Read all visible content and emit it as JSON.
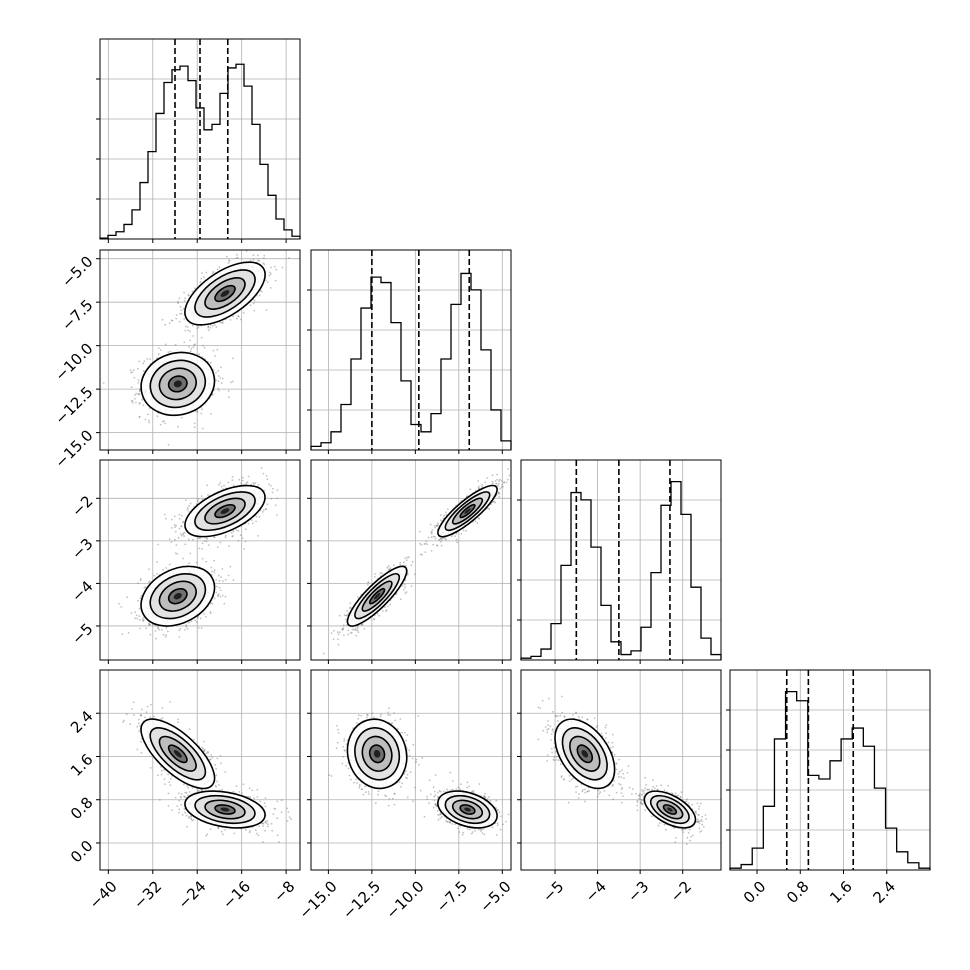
{
  "chart_data": {
    "type": "corner",
    "title": "",
    "grid": true,
    "parameters": [
      {
        "label": "",
        "range": [
          -41.5,
          -5.5
        ],
        "ticks": [
          -40,
          -32,
          -24,
          -16,
          -8
        ],
        "quantile_lines": [
          -28.0,
          -23.5,
          -18.5
        ],
        "modes": [
          {
            "mean": -27.5,
            "sd": 3.3,
            "w": 0.5
          },
          {
            "mean": -19.0,
            "sd": 3.6,
            "w": 0.5
          }
        ],
        "hist_bins": [
          0.005,
          0.02,
          0.04,
          0.08,
          0.16,
          0.31,
          0.48,
          0.69,
          0.86,
          0.93,
          0.95,
          0.87,
          0.72,
          0.6,
          0.63,
          0.8,
          0.94,
          0.96,
          0.84,
          0.63,
          0.41,
          0.24,
          0.11,
          0.05,
          0.015
        ]
      },
      {
        "label": "",
        "range": [
          -16.0,
          -4.5
        ],
        "ticks": [
          -15.0,
          -12.5,
          -10.0,
          -7.5,
          -5.0
        ],
        "tick_text": [
          "−15.0",
          "−12.5",
          "−10.0",
          "−7.5",
          "−5.0"
        ],
        "quantile_lines": [
          -12.5,
          -9.8,
          -6.9
        ],
        "modes": [
          {
            "mean": -12.2,
            "sd": 0.85,
            "w": 0.5
          },
          {
            "mean": -7.0,
            "sd": 0.85,
            "w": 0.5
          }
        ],
        "hist_bins": [
          0.02,
          0.04,
          0.1,
          0.25,
          0.5,
          0.78,
          0.95,
          0.92,
          0.7,
          0.38,
          0.14,
          0.1,
          0.2,
          0.5,
          0.8,
          0.97,
          0.88,
          0.55,
          0.22,
          0.05
        ]
      },
      {
        "label": "",
        "range": [
          -5.8,
          -1.1
        ],
        "ticks": [
          -5,
          -4,
          -3,
          -2
        ],
        "quantile_lines": [
          -4.5,
          -3.5,
          -2.3
        ],
        "modes": [
          {
            "mean": -4.3,
            "sd": 0.35,
            "w": 0.5
          },
          {
            "mean": -2.3,
            "sd": 0.3,
            "w": 0.5
          }
        ],
        "hist_bins": [
          0.01,
          0.02,
          0.06,
          0.2,
          0.52,
          0.92,
          0.88,
          0.62,
          0.3,
          0.1,
          0.03,
          0.05,
          0.18,
          0.48,
          0.85,
          0.98,
          0.8,
          0.4,
          0.12,
          0.03
        ]
      },
      {
        "label": "",
        "range": [
          -0.5,
          3.2
        ],
        "ticks": [
          0.0,
          0.8,
          1.6,
          2.4
        ],
        "tick_text": [
          "0.0",
          "0.8",
          "1.6",
          "2.4"
        ],
        "quantile_lines": [
          0.55,
          0.95,
          1.78
        ],
        "modes": [
          {
            "mean": 0.65,
            "sd": 0.15,
            "w": 0.5
          },
          {
            "mean": 1.65,
            "sd": 0.3,
            "w": 0.5
          }
        ],
        "hist_bins": [
          0.01,
          0.03,
          0.12,
          0.35,
          0.72,
          0.98,
          0.93,
          0.52,
          0.5,
          0.6,
          0.72,
          0.78,
          0.68,
          0.45,
          0.23,
          0.1,
          0.04,
          0.01
        ]
      }
    ],
    "pair_panels": [
      {
        "row": 1,
        "col": 0,
        "blobs": [
          {
            "cx": -27.5,
            "cy": -12.2,
            "sx": 3.3,
            "sy": 0.9,
            "rho": 0.1
          },
          {
            "cx": -19.0,
            "cy": -7.0,
            "sx": 3.6,
            "sy": 0.9,
            "rho": 0.6
          }
        ]
      },
      {
        "row": 2,
        "col": 0,
        "blobs": [
          {
            "cx": -27.5,
            "cy": -4.3,
            "sx": 3.3,
            "sy": 0.35,
            "rho": 0.3
          },
          {
            "cx": -19.0,
            "cy": -2.3,
            "sx": 3.6,
            "sy": 0.3,
            "rho": 0.55
          }
        ]
      },
      {
        "row": 2,
        "col": 1,
        "blobs": [
          {
            "cx": -12.2,
            "cy": -4.3,
            "sx": 0.85,
            "sy": 0.35,
            "rho": 0.85
          },
          {
            "cx": -7.0,
            "cy": -2.3,
            "sx": 0.85,
            "sy": 0.3,
            "rho": 0.85
          }
        ]
      },
      {
        "row": 3,
        "col": 0,
        "blobs": [
          {
            "cx": -27.5,
            "cy": 1.65,
            "sx": 3.3,
            "sy": 0.32,
            "rho": -0.7
          },
          {
            "cx": -19.0,
            "cy": 0.62,
            "sx": 3.6,
            "sy": 0.17,
            "rho": -0.3
          }
        ]
      },
      {
        "row": 3,
        "col": 1,
        "blobs": [
          {
            "cx": -12.2,
            "cy": 1.65,
            "sx": 0.85,
            "sy": 0.32,
            "rho": -0.1
          },
          {
            "cx": -7.0,
            "cy": 0.62,
            "sx": 0.85,
            "sy": 0.17,
            "rho": -0.35
          }
        ]
      },
      {
        "row": 3,
        "col": 2,
        "blobs": [
          {
            "cx": -4.3,
            "cy": 1.65,
            "sx": 0.35,
            "sy": 0.32,
            "rho": -0.45
          },
          {
            "cx": -2.3,
            "cy": 0.62,
            "sx": 0.3,
            "sy": 0.17,
            "rho": -0.55
          }
        ]
      }
    ]
  }
}
